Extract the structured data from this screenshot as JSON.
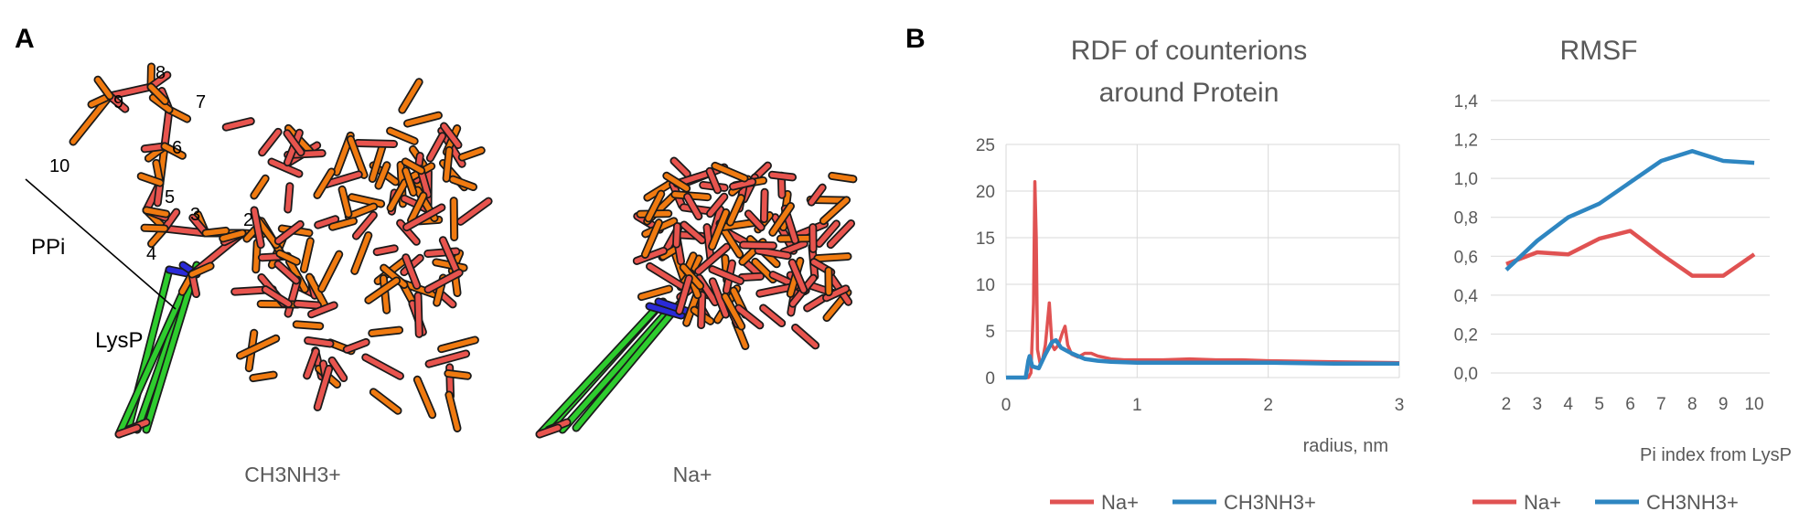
{
  "panel_a": {
    "letter": "A",
    "pi_labels": [
      "2",
      "3",
      "4",
      "5",
      "6",
      "7",
      "8",
      "9",
      "10"
    ],
    "ppi_label": "PPi",
    "lysp_label": "LysP",
    "caption_left": "CH3NH3+",
    "caption_right": "Na+"
  },
  "panel_b": {
    "letter": "B"
  },
  "colors": {
    "na": "#e05252",
    "ch3": "#2e86c1",
    "grid": "#d9d9d9",
    "text": "#595959",
    "mol_orange": "#f07a10",
    "mol_red": "#e8544e",
    "mol_green": "#2ecc2e",
    "mol_blue": "#2a2ad8"
  },
  "chart_data": [
    {
      "id": "rdf",
      "type": "line",
      "title_lines": [
        "RDF of counterions",
        "around Protein"
      ],
      "xlabel": "radius, nm",
      "ylabel": "",
      "xlim": [
        0,
        3
      ],
      "ylim": [
        0,
        25
      ],
      "xticks": [
        "0",
        "1",
        "2",
        "3"
      ],
      "yticks": [
        "0",
        "5",
        "10",
        "15",
        "20",
        "25"
      ],
      "grid": true,
      "legend_position": "bottom",
      "series": [
        {
          "name": "Na+",
          "x": [
            0,
            0.1,
            0.17,
            0.19,
            0.21,
            0.22,
            0.23,
            0.24,
            0.26,
            0.28,
            0.3,
            0.33,
            0.35,
            0.37,
            0.4,
            0.43,
            0.45,
            0.47,
            0.5,
            0.55,
            0.6,
            0.65,
            0.7,
            0.8,
            0.9,
            1.0,
            1.2,
            1.4,
            1.6,
            1.8,
            2.0,
            2.5,
            3.0
          ],
          "y": [
            0,
            0,
            0,
            0.5,
            8,
            21,
            15,
            3,
            1.5,
            2.0,
            3.5,
            8,
            3.5,
            3.0,
            3.5,
            4.8,
            5.5,
            3.5,
            2.5,
            2.2,
            2.6,
            2.6,
            2.3,
            2.0,
            1.9,
            1.9,
            1.9,
            2.0,
            1.9,
            1.9,
            1.8,
            1.7,
            1.6
          ]
        },
        {
          "name": "CH3NH3+",
          "x": [
            0,
            0.1,
            0.15,
            0.17,
            0.18,
            0.2,
            0.25,
            0.3,
            0.35,
            0.38,
            0.42,
            0.5,
            0.6,
            0.7,
            0.8,
            1.0,
            1.5,
            2.0,
            2.5,
            3.0
          ],
          "y": [
            0,
            0,
            0,
            1.8,
            2.3,
            1.2,
            1.0,
            2.5,
            3.8,
            4.0,
            3.2,
            2.6,
            2.0,
            1.8,
            1.7,
            1.6,
            1.6,
            1.6,
            1.5,
            1.5
          ]
        }
      ]
    },
    {
      "id": "rmsf",
      "type": "line",
      "title_lines": [
        "RMSF"
      ],
      "xlabel": "Pi index from LysP",
      "ylabel": "",
      "categories": [
        "2",
        "3",
        "4",
        "5",
        "6",
        "7",
        "8",
        "9",
        "10"
      ],
      "ylim": [
        0,
        1.4
      ],
      "yticks": [
        "0,0",
        "0,2",
        "0,4",
        "0,6",
        "0,8",
        "1,0",
        "1,2",
        "1,4"
      ],
      "grid": true,
      "legend_position": "bottom",
      "series": [
        {
          "name": "Na+",
          "values": [
            0.56,
            0.62,
            0.61,
            0.69,
            0.73,
            0.61,
            0.5,
            0.5,
            0.61
          ]
        },
        {
          "name": "CH3NH3+",
          "values": [
            0.53,
            0.68,
            0.8,
            0.87,
            0.98,
            1.09,
            1.14,
            1.09,
            1.08
          ]
        }
      ]
    }
  ]
}
